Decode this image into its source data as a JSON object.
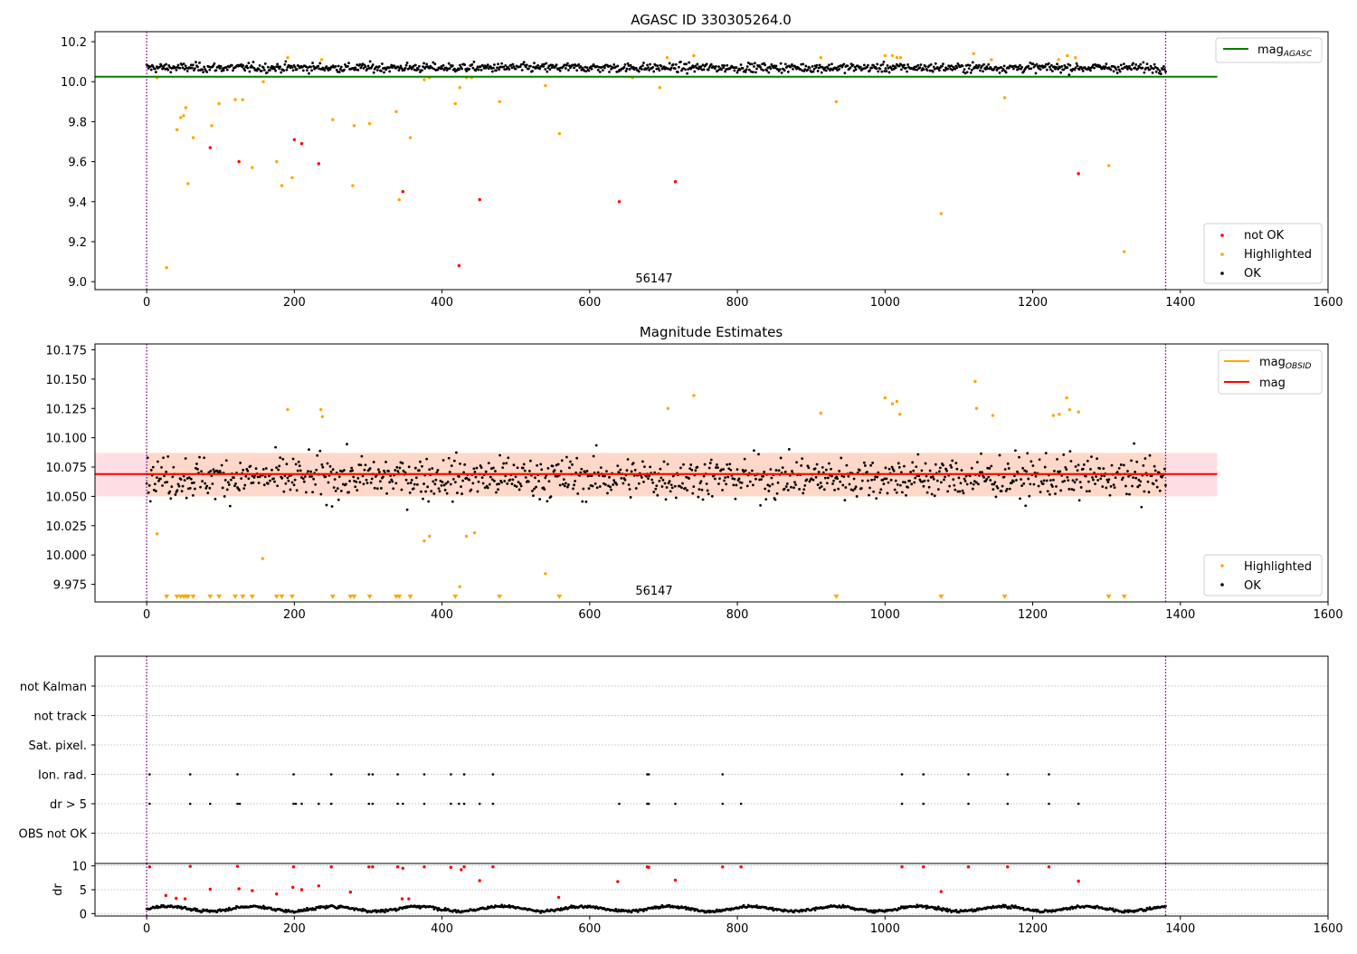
{
  "chart_data": [
    {
      "type": "scatter",
      "title": "AGASC ID 330305264.0",
      "xlim": [
        -70,
        1600
      ],
      "ylim": [
        8.96,
        10.25
      ],
      "x_ticks": [
        0,
        200,
        400,
        600,
        800,
        1000,
        1200,
        1400,
        1600
      ],
      "y_ticks": [
        9.0,
        9.2,
        9.4,
        9.6,
        9.8,
        10.0,
        10.2
      ],
      "annotation": "56147",
      "vlines_x": [
        0,
        1380
      ],
      "hlines": [
        {
          "name": "mag_AGASC",
          "y": 10.025,
          "x_range": [
            -70,
            1450
          ],
          "color": "#008000"
        }
      ],
      "legend_top": [
        {
          "label": "mag",
          "sub": "AGASC",
          "color": "#008000",
          "kind": "line"
        }
      ],
      "legend_bottom": [
        {
          "label": "not OK",
          "color": "#ff0000",
          "kind": "dot"
        },
        {
          "label": "Highlighted",
          "color": "#ffa500",
          "kind": "dot"
        },
        {
          "label": "OK",
          "color": "#000000",
          "kind": "dot"
        }
      ],
      "ok_band": {
        "x_range": [
          0,
          1380
        ],
        "center": 10.07,
        "spread": 0.02,
        "n": 1100,
        "color": "#000000"
      },
      "series": [
        {
          "name": "not OK",
          "color": "#ff0000",
          "x": [
            86,
            125,
            200,
            210,
            233,
            347,
            423,
            451,
            640,
            716,
            1262
          ],
          "y": [
            9.67,
            9.6,
            9.71,
            9.69,
            9.59,
            9.45,
            9.08,
            9.41,
            9.4,
            9.5,
            9.54
          ]
        },
        {
          "name": "Highlighted",
          "color": "#ffa500",
          "x": [
            14,
            27,
            41,
            46,
            50,
            53,
            56,
            63,
            88,
            98,
            120,
            130,
            143,
            158,
            176,
            183,
            191,
            197,
            237,
            252,
            279,
            281,
            302,
            338,
            342,
            357,
            376,
            383,
            418,
            424,
            433,
            440,
            478,
            540,
            559,
            658,
            695,
            705,
            741,
            913,
            934,
            1000,
            1010,
            1016,
            1021,
            1076,
            1120,
            1144,
            1162,
            1235,
            1247,
            1258,
            1303,
            1324
          ],
          "y": [
            10.02,
            9.07,
            9.76,
            9.82,
            9.83,
            9.87,
            9.49,
            9.72,
            9.78,
            9.89,
            9.91,
            9.91,
            9.57,
            10.0,
            9.6,
            9.48,
            10.12,
            9.52,
            10.11,
            9.81,
            9.48,
            9.78,
            9.79,
            9.85,
            9.41,
            9.72,
            10.01,
            10.02,
            9.89,
            9.97,
            10.02,
            10.02,
            9.9,
            9.98,
            9.74,
            10.02,
            9.97,
            10.12,
            10.13,
            10.12,
            9.9,
            10.13,
            10.13,
            10.12,
            10.12,
            9.34,
            10.14,
            10.11,
            9.92,
            10.11,
            10.13,
            10.12,
            9.58,
            9.15
          ]
        }
      ]
    },
    {
      "type": "scatter",
      "title": "Magnitude Estimates",
      "xlim": [
        -70,
        1600
      ],
      "ylim": [
        9.96,
        10.18
      ],
      "x_ticks": [
        0,
        200,
        400,
        600,
        800,
        1000,
        1200,
        1400,
        1600
      ],
      "y_ticks": [
        9.975,
        10.0,
        10.025,
        10.05,
        10.075,
        10.1,
        10.125,
        10.15,
        10.175
      ],
      "annotation": "56147",
      "vlines_x": [
        0,
        1380
      ],
      "bands": [
        {
          "name": "mag_OBSID range",
          "y_range": [
            10.05,
            10.087
          ],
          "x_range": [
            -70,
            1450
          ],
          "color": "#ffb6c1"
        },
        {
          "name": "mag_OBSID range",
          "y_range": [
            10.05,
            10.087
          ],
          "x_range": [
            0,
            1380
          ],
          "color": "#ffd0a8"
        }
      ],
      "hlines": [
        {
          "name": "mag_OBSID",
          "y": 10.069,
          "x_range": [
            0,
            1380
          ],
          "color": "#ffa500"
        },
        {
          "name": "mag",
          "y": 10.069,
          "x_range": [
            -70,
            1450
          ],
          "color": "#ff0000"
        }
      ],
      "legend_top": [
        {
          "label": "mag",
          "sub": "OBSID",
          "color": "#ffa500",
          "kind": "line"
        },
        {
          "label": "mag",
          "sub": "",
          "color": "#ff0000",
          "kind": "line"
        }
      ],
      "legend_bottom": [
        {
          "label": "Highlighted",
          "color": "#ffa500",
          "kind": "dot"
        },
        {
          "label": "OK",
          "color": "#000000",
          "kind": "dot"
        }
      ],
      "ok_band": {
        "x_range": [
          0,
          1380
        ],
        "center": 10.066,
        "spread": 0.016,
        "n": 1100,
        "color": "#000000"
      },
      "series": [
        {
          "name": "Highlighted",
          "color": "#ffa500",
          "x": [
            14,
            157,
            191,
            236,
            238,
            376,
            383,
            424,
            433,
            444,
            540,
            706,
            741,
            913,
            1000,
            1010,
            1016,
            1020,
            1122,
            1124,
            1146,
            1228,
            1236,
            1246,
            1250,
            1262
          ],
          "y": [
            10.018,
            9.997,
            10.124,
            10.124,
            10.118,
            10.012,
            10.016,
            9.973,
            10.016,
            10.019,
            9.984,
            10.125,
            10.136,
            10.121,
            10.134,
            10.129,
            10.131,
            10.12,
            10.148,
            10.125,
            10.119,
            10.119,
            10.12,
            10.134,
            10.124,
            10.122
          ]
        },
        {
          "name": "Highlighted (off-scale)",
          "color": "#ffa500",
          "marker": "triangle-down",
          "y_fixed": 9.964,
          "x": [
            27,
            41,
            46,
            50,
            53,
            56,
            63,
            86,
            98,
            120,
            130,
            143,
            176,
            183,
            197,
            252,
            276,
            281,
            302,
            338,
            342,
            357,
            418,
            478,
            559,
            934,
            1076,
            1162,
            1303,
            1324
          ]
        }
      ]
    },
    {
      "type": "scatter",
      "title": "",
      "xlim": [
        -70,
        1600
      ],
      "x_ticks": [],
      "categories": [
        "not Kalman",
        "not track",
        "Sat. pixel.",
        "Ion. rad.",
        "dr > 5",
        "OBS not OK"
      ],
      "vlines_x": [
        0,
        1380
      ],
      "series": [
        {
          "name": "Ion. rad.",
          "color": "#000000",
          "x": [
            4,
            59,
            123,
            199,
            250,
            301,
            306,
            340,
            376,
            412,
            430,
            469,
            678,
            680,
            780,
            1023,
            1052,
            1113,
            1166,
            1222
          ]
        },
        {
          "name": "dr > 5",
          "color": "#000000",
          "x": [
            4,
            59,
            86,
            123,
            126,
            199,
            202,
            210,
            233,
            250,
            301,
            306,
            340,
            347,
            376,
            412,
            423,
            430,
            451,
            469,
            640,
            678,
            680,
            716,
            780,
            805,
            1023,
            1052,
            1113,
            1166,
            1222,
            1262
          ]
        }
      ]
    },
    {
      "type": "scatter",
      "title": "",
      "ylabel": "dr",
      "xlim": [
        -70,
        1600
      ],
      "ylim": [
        -0.5,
        10.5
      ],
      "x_ticks": [
        0,
        200,
        400,
        600,
        800,
        1000,
        1200,
        1400,
        1600
      ],
      "y_ticks": [
        0,
        5,
        10
      ],
      "vlines_x": [
        0,
        1380
      ],
      "ok_band": {
        "x_range": [
          0,
          1380
        ],
        "center": 1.0,
        "spread": 0.45,
        "n": 1100,
        "color": "#000000"
      },
      "series": [
        {
          "name": "dr > 5",
          "color": "#ff0000",
          "x": [
            4,
            59,
            123,
            199,
            250,
            301,
            306,
            340,
            347,
            376,
            412,
            426,
            430,
            451,
            469,
            638,
            678,
            680,
            716,
            780,
            805,
            1023,
            1052,
            1076,
            1113,
            1166,
            1222,
            1262
          ],
          "y": [
            9.8,
            9.9,
            9.9,
            9.8,
            9.8,
            9.8,
            9.8,
            9.8,
            9.5,
            9.8,
            9.7,
            9.2,
            9.8,
            6.9,
            9.8,
            6.7,
            9.8,
            9.7,
            7.0,
            9.8,
            9.8,
            9.8,
            9.8,
            4.6,
            9.8,
            9.8,
            9.8,
            6.8
          ]
        },
        {
          "name": "dr 2-5",
          "color": "#ff0000",
          "x": [
            26,
            40,
            52,
            86,
            125,
            143,
            176,
            198,
            210,
            233,
            276,
            346,
            355,
            558
          ],
          "y": [
            3.8,
            3.2,
            3.1,
            5.1,
            5.2,
            4.8,
            4.1,
            5.5,
            5.0,
            5.8,
            4.5,
            3.1,
            3.1,
            3.4
          ]
        }
      ]
    }
  ]
}
